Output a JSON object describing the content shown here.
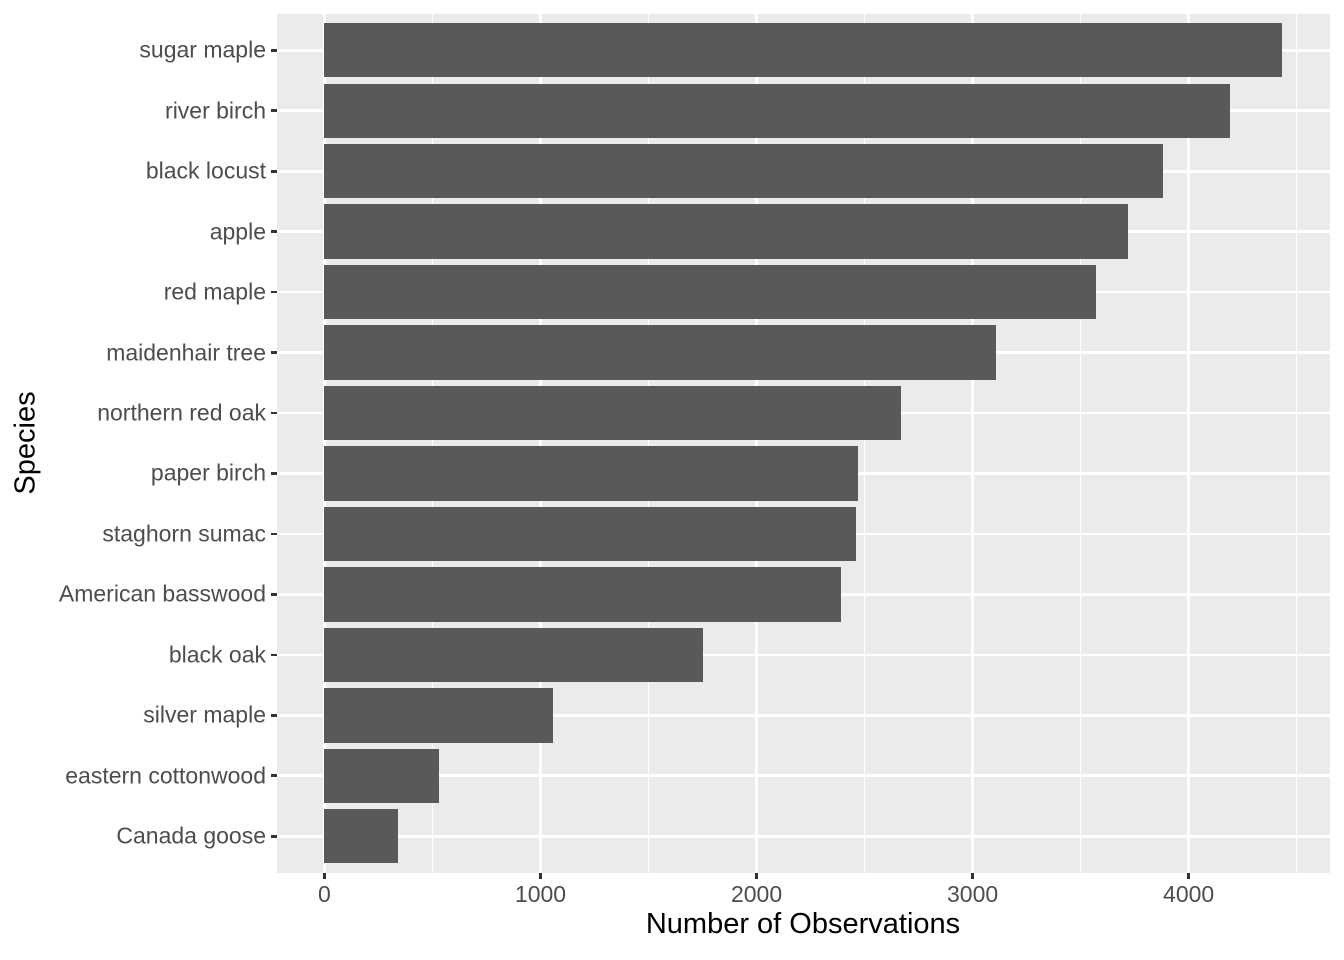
{
  "chart_data": {
    "type": "bar",
    "orientation": "horizontal",
    "title": "",
    "xlabel": "Number of Observations",
    "ylabel": "Species",
    "categories": [
      "sugar maple",
      "river birch",
      "black locust",
      "apple",
      "red maple",
      "maidenhair tree",
      "northern red oak",
      "paper birch",
      "staghorn sumac",
      "American basswood",
      "black oak",
      "silver maple",
      "eastern cottonwood",
      "Canada goose"
    ],
    "values": [
      4430,
      4190,
      3880,
      3720,
      3570,
      3110,
      2670,
      2470,
      2460,
      2390,
      1750,
      1060,
      530,
      340
    ],
    "category_order": "descending, largest at top",
    "xlim": [
      -222,
      4652
    ],
    "x_major_ticks": [
      0,
      1000,
      2000,
      3000,
      4000
    ],
    "x_tick_labels": [
      "0",
      "1000",
      "2000",
      "3000",
      "4000"
    ],
    "x_minor_ticks": [
      500,
      1500,
      2500,
      3500,
      4500
    ],
    "grid": "on",
    "legend_position": "none",
    "bar_width_fraction": 0.9,
    "colors": {
      "bar_fill": "#595959",
      "panel_background": "#EBEBEB",
      "grid_line": "#FFFFFF",
      "tick_mark": "#333333",
      "tick_label": "#4D4D4D",
      "axis_title": "#000000",
      "figure_background": "#FFFFFF"
    }
  }
}
